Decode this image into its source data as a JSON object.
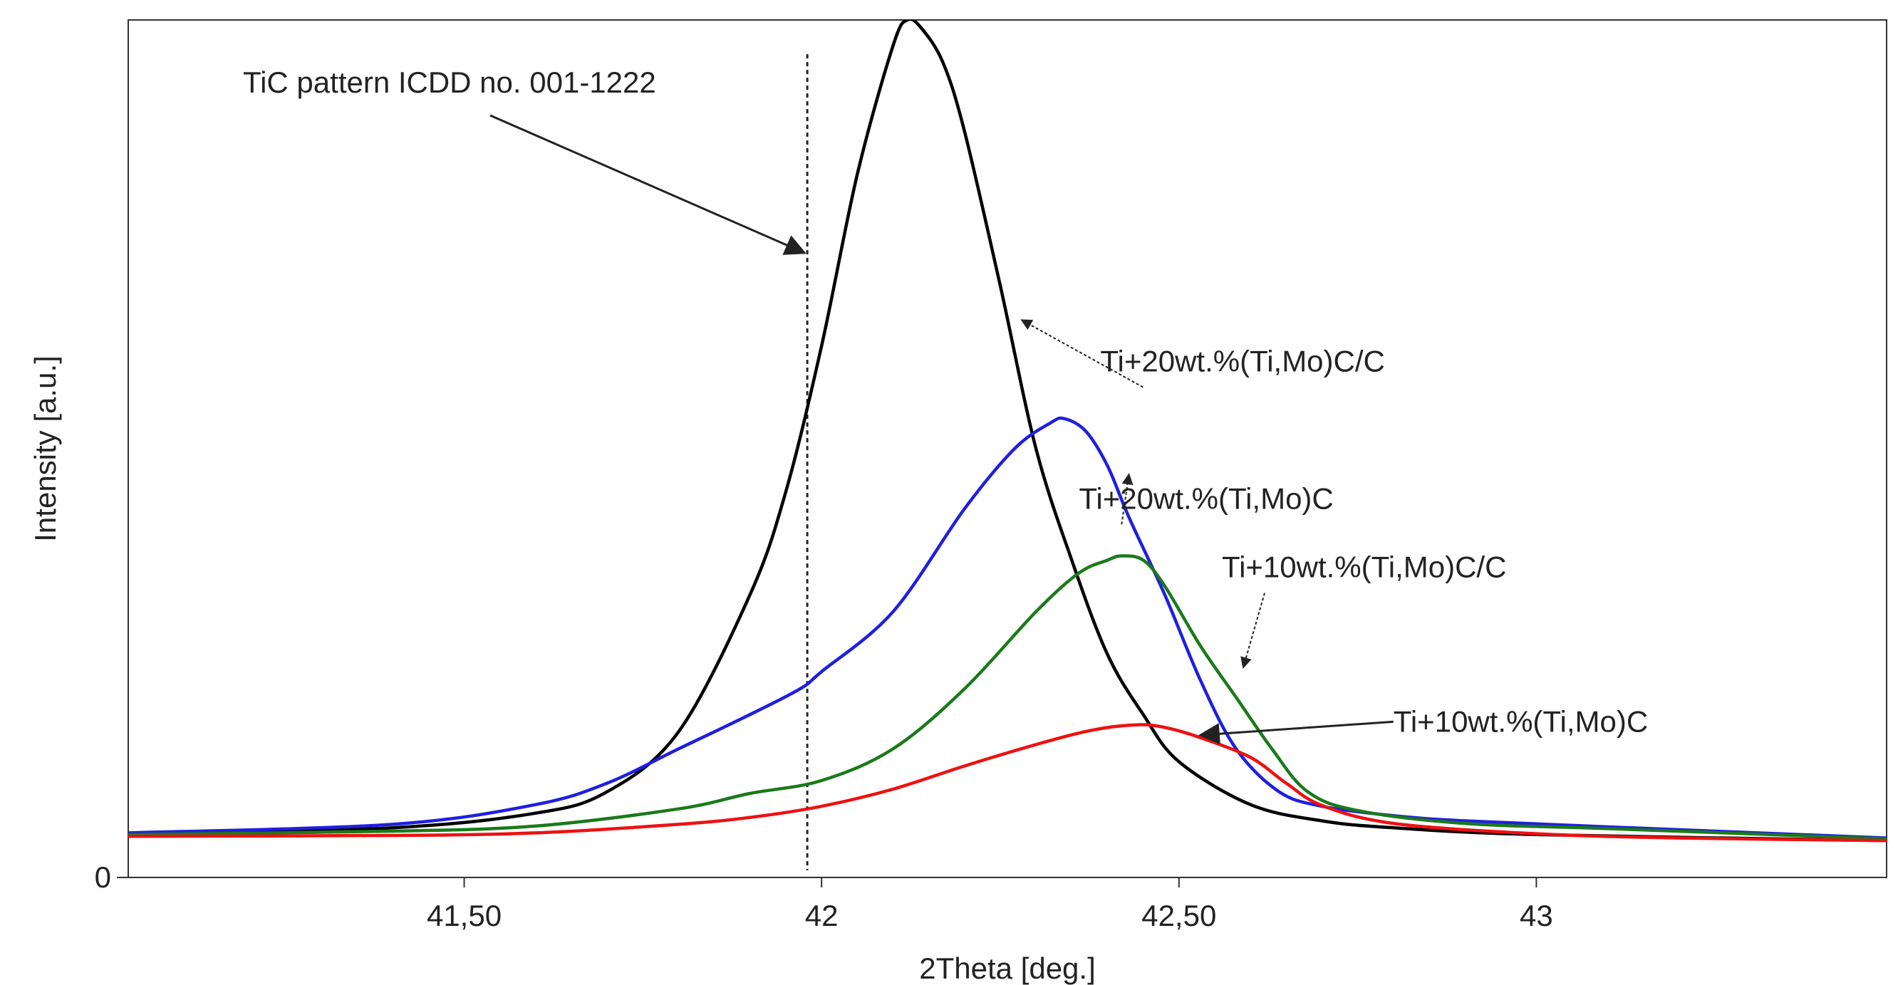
{
  "chart_data": {
    "type": "line",
    "title": "",
    "xlabel": "2Theta [deg.]",
    "ylabel": "Intensity [a.u.]",
    "xlim": [
      41.03,
      43.49
    ],
    "ylim": [
      0,
      1.0
    ],
    "x_ticks": [
      41.5,
      42.0,
      42.5,
      43.0
    ],
    "x_tick_labels": [
      "41,50",
      "42",
      "42,50",
      "43"
    ],
    "y_ticks": [
      0
    ],
    "y_tick_labels": [
      "0"
    ],
    "grid": false,
    "legend": "none",
    "reference_line": {
      "label": "TiC pattern ICDD no. 001-1222",
      "x": 41.98
    },
    "series": [
      {
        "color": "#000000",
        "label": "Ti+20wt.%(Ti,Mo)C/C",
        "label_anchor": [
          42.39,
          0.59
        ],
        "arrow_target": [
          42.28,
          0.65
        ],
        "arrow_style": "dotted",
        "points": [
          [
            41.03,
            0.049
          ],
          [
            41.4,
            0.058
          ],
          [
            41.6,
            0.075
          ],
          [
            41.7,
            0.1
          ],
          [
            41.8,
            0.17
          ],
          [
            41.9,
            0.33
          ],
          [
            41.95,
            0.45
          ],
          [
            42.0,
            0.62
          ],
          [
            42.05,
            0.82
          ],
          [
            42.1,
            0.97
          ],
          [
            42.12,
            1.0
          ],
          [
            42.14,
            0.99
          ],
          [
            42.17,
            0.95
          ],
          [
            42.2,
            0.87
          ],
          [
            42.25,
            0.69
          ],
          [
            42.3,
            0.5
          ],
          [
            42.35,
            0.37
          ],
          [
            42.4,
            0.26
          ],
          [
            42.45,
            0.19
          ],
          [
            42.5,
            0.135
          ],
          [
            42.6,
            0.085
          ],
          [
            42.7,
            0.066
          ],
          [
            42.8,
            0.058
          ],
          [
            43.0,
            0.05
          ],
          [
            43.49,
            0.043
          ]
        ]
      },
      {
        "color": "#1f1fe0",
        "label": "Ti+20wt.%(Ti,Mo)C",
        "label_anchor": [
          42.36,
          0.43
        ],
        "arrow_target": [
          42.43,
          0.47
        ],
        "arrow_style": "dotted",
        "points": [
          [
            41.03,
            0.052
          ],
          [
            41.4,
            0.062
          ],
          [
            41.6,
            0.085
          ],
          [
            41.7,
            0.11
          ],
          [
            41.8,
            0.15
          ],
          [
            41.9,
            0.19
          ],
          [
            41.97,
            0.22
          ],
          [
            42.0,
            0.24
          ],
          [
            42.1,
            0.31
          ],
          [
            42.2,
            0.43
          ],
          [
            42.27,
            0.5
          ],
          [
            42.32,
            0.53
          ],
          [
            42.34,
            0.535
          ],
          [
            42.37,
            0.52
          ],
          [
            42.4,
            0.48
          ],
          [
            42.43,
            0.42
          ],
          [
            42.48,
            0.33
          ],
          [
            42.53,
            0.23
          ],
          [
            42.58,
            0.15
          ],
          [
            42.64,
            0.1
          ],
          [
            42.7,
            0.083
          ],
          [
            42.8,
            0.072
          ],
          [
            42.9,
            0.066
          ],
          [
            43.1,
            0.059
          ],
          [
            43.49,
            0.046
          ]
        ]
      },
      {
        "color": "#1a7a1a",
        "label": "Ti+10wt.%(Ti,Mo)C/C",
        "label_anchor": [
          42.56,
          0.35
        ],
        "arrow_target": [
          42.59,
          0.245
        ],
        "arrow_style": "dotted",
        "points": [
          [
            41.03,
            0.05
          ],
          [
            41.4,
            0.054
          ],
          [
            41.6,
            0.06
          ],
          [
            41.8,
            0.08
          ],
          [
            41.9,
            0.098
          ],
          [
            42.0,
            0.113
          ],
          [
            42.1,
            0.15
          ],
          [
            42.2,
            0.22
          ],
          [
            42.3,
            0.31
          ],
          [
            42.36,
            0.355
          ],
          [
            42.4,
            0.37
          ],
          [
            42.42,
            0.375
          ],
          [
            42.45,
            0.37
          ],
          [
            42.48,
            0.34
          ],
          [
            42.53,
            0.27
          ],
          [
            42.58,
            0.21
          ],
          [
            42.63,
            0.15
          ],
          [
            42.68,
            0.1
          ],
          [
            42.75,
            0.078
          ],
          [
            42.9,
            0.063
          ],
          [
            43.1,
            0.057
          ],
          [
            43.49,
            0.045
          ]
        ]
      },
      {
        "color": "#ee1111",
        "label": "Ti+10wt.%(Ti,Mo)C",
        "label_anchor": [
          42.8,
          0.17
        ],
        "arrow_target": [
          42.53,
          0.166
        ],
        "arrow_style": "solid",
        "points": [
          [
            41.03,
            0.048
          ],
          [
            41.4,
            0.049
          ],
          [
            41.6,
            0.052
          ],
          [
            41.8,
            0.062
          ],
          [
            41.9,
            0.07
          ],
          [
            42.0,
            0.083
          ],
          [
            42.1,
            0.103
          ],
          [
            42.2,
            0.13
          ],
          [
            42.3,
            0.155
          ],
          [
            42.38,
            0.172
          ],
          [
            42.44,
            0.178
          ],
          [
            42.48,
            0.175
          ],
          [
            42.53,
            0.163
          ],
          [
            42.6,
            0.14
          ],
          [
            42.65,
            0.11
          ],
          [
            42.7,
            0.084
          ],
          [
            42.8,
            0.063
          ],
          [
            43.0,
            0.051
          ],
          [
            43.2,
            0.046
          ],
          [
            43.49,
            0.043
          ]
        ]
      }
    ]
  }
}
